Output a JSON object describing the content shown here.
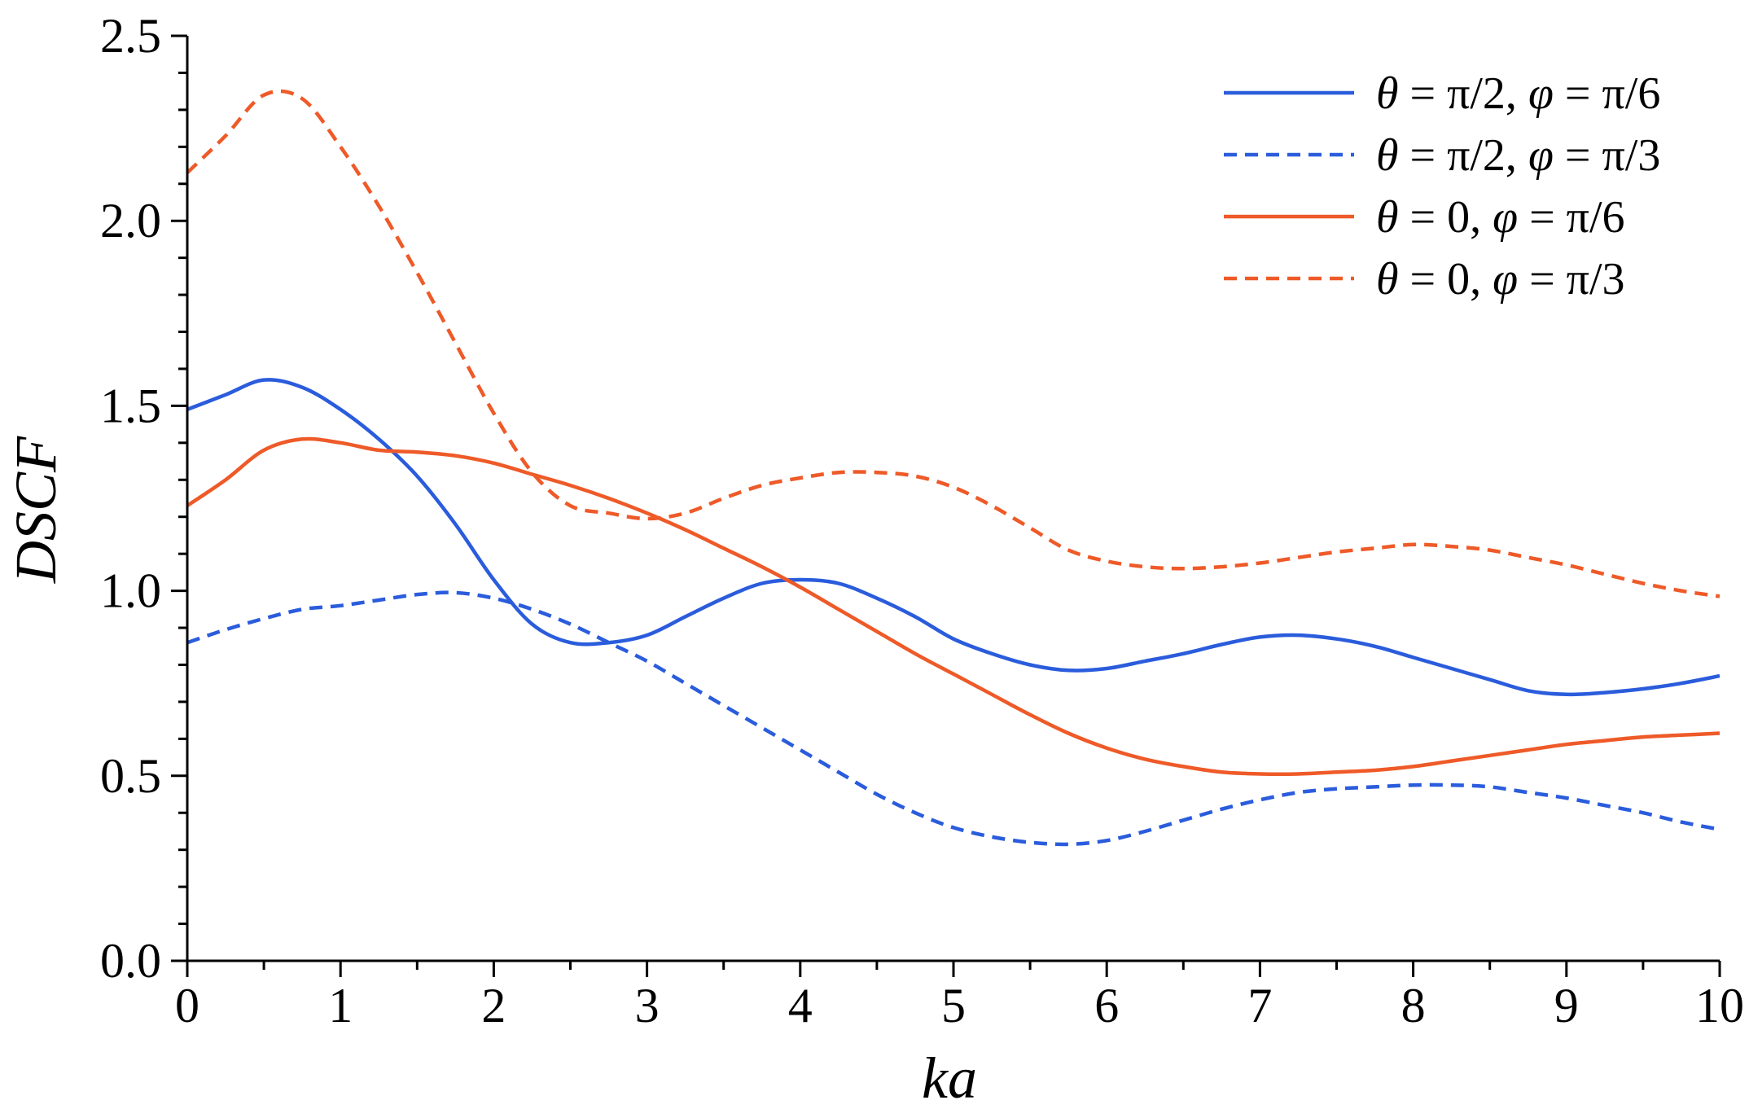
{
  "chart_data": {
    "type": "line",
    "xlabel": "ka",
    "ylabel": "DSCF",
    "xlim": [
      0,
      10
    ],
    "ylim": [
      0,
      2.5
    ],
    "x_ticks": [
      "0",
      "1",
      "2",
      "3",
      "4",
      "5",
      "6",
      "7",
      "8",
      "9",
      "10"
    ],
    "y_ticks": [
      "0.0",
      "0.5",
      "1.0",
      "1.5",
      "2.0",
      "2.5"
    ],
    "grid": false,
    "legend_position": "top-right",
    "series": [
      {
        "name": "θ = π/2, φ = π/6",
        "legend": {
          "a": "θ",
          "b": " = π/2, ",
          "c": "φ",
          "d": " = π/6"
        },
        "color": "#2A5CDC",
        "dash": "solid",
        "x": [
          0,
          0.25,
          0.5,
          0.75,
          1.0,
          1.25,
          1.5,
          1.75,
          2.0,
          2.25,
          2.5,
          2.75,
          3.0,
          3.25,
          3.5,
          3.75,
          4.0,
          4.25,
          4.5,
          4.75,
          5.0,
          5.25,
          5.5,
          5.75,
          6.0,
          6.25,
          6.5,
          6.75,
          7.0,
          7.25,
          7.5,
          7.75,
          8.0,
          8.25,
          8.5,
          8.75,
          9.0,
          9.25,
          9.5,
          9.75,
          10.0
        ],
        "y": [
          1.49,
          1.53,
          1.57,
          1.55,
          1.49,
          1.41,
          1.31,
          1.18,
          1.03,
          0.91,
          0.86,
          0.86,
          0.88,
          0.93,
          0.98,
          1.02,
          1.03,
          1.02,
          0.98,
          0.93,
          0.87,
          0.83,
          0.8,
          0.785,
          0.79,
          0.81,
          0.83,
          0.855,
          0.875,
          0.88,
          0.87,
          0.85,
          0.82,
          0.79,
          0.76,
          0.73,
          0.72,
          0.725,
          0.735,
          0.75,
          0.77
        ]
      },
      {
        "name": "θ = π/2, φ = π/3",
        "legend": {
          "a": "θ",
          "b": " = π/2, ",
          "c": "φ",
          "d": " = π/3"
        },
        "color": "#2A5CDC",
        "dash": "dashed",
        "x": [
          0,
          0.25,
          0.5,
          0.75,
          1.0,
          1.25,
          1.5,
          1.75,
          2.0,
          2.25,
          2.5,
          2.75,
          3.0,
          3.25,
          3.5,
          3.75,
          4.0,
          4.25,
          4.5,
          4.75,
          5.0,
          5.25,
          5.5,
          5.75,
          6.0,
          6.25,
          6.5,
          6.75,
          7.0,
          7.25,
          7.5,
          7.75,
          8.0,
          8.25,
          8.5,
          8.75,
          9.0,
          9.25,
          9.5,
          9.75,
          10.0
        ],
        "y": [
          0.86,
          0.895,
          0.925,
          0.95,
          0.96,
          0.975,
          0.99,
          0.995,
          0.98,
          0.95,
          0.91,
          0.86,
          0.81,
          0.75,
          0.69,
          0.63,
          0.57,
          0.51,
          0.45,
          0.4,
          0.36,
          0.335,
          0.32,
          0.315,
          0.325,
          0.35,
          0.38,
          0.41,
          0.435,
          0.455,
          0.465,
          0.47,
          0.475,
          0.475,
          0.47,
          0.455,
          0.44,
          0.42,
          0.4,
          0.375,
          0.355
        ]
      },
      {
        "name": "θ = 0, φ = π/6",
        "legend": {
          "a": "θ",
          "b": " = 0, ",
          "c": "φ",
          "d": " = π/6"
        },
        "color": "#EE5A28",
        "dash": "solid",
        "x": [
          0,
          0.25,
          0.5,
          0.75,
          1.0,
          1.25,
          1.5,
          1.75,
          2.0,
          2.25,
          2.5,
          2.75,
          3.0,
          3.25,
          3.5,
          3.75,
          4.0,
          4.25,
          4.5,
          4.75,
          5.0,
          5.25,
          5.5,
          5.75,
          6.0,
          6.25,
          6.5,
          6.75,
          7.0,
          7.25,
          7.5,
          7.75,
          8.0,
          8.25,
          8.5,
          8.75,
          9.0,
          9.25,
          9.5,
          9.75,
          10.0
        ],
        "y": [
          1.23,
          1.3,
          1.38,
          1.41,
          1.4,
          1.38,
          1.375,
          1.365,
          1.345,
          1.315,
          1.285,
          1.25,
          1.21,
          1.165,
          1.115,
          1.065,
          1.01,
          0.95,
          0.89,
          0.83,
          0.775,
          0.72,
          0.665,
          0.615,
          0.575,
          0.545,
          0.525,
          0.51,
          0.505,
          0.505,
          0.51,
          0.515,
          0.525,
          0.54,
          0.555,
          0.57,
          0.585,
          0.595,
          0.605,
          0.61,
          0.615
        ]
      },
      {
        "name": "θ = 0, φ = π/3",
        "legend": {
          "a": "θ",
          "b": " = 0, ",
          "c": "φ",
          "d": " = π/3"
        },
        "color": "#EE5A28",
        "dash": "dashed",
        "x": [
          0,
          0.25,
          0.5,
          0.75,
          1.0,
          1.25,
          1.5,
          1.75,
          2.0,
          2.25,
          2.5,
          2.75,
          3.0,
          3.25,
          3.5,
          3.75,
          4.0,
          4.25,
          4.5,
          4.75,
          5.0,
          5.25,
          5.5,
          5.75,
          6.0,
          6.25,
          6.5,
          6.75,
          7.0,
          7.25,
          7.5,
          7.75,
          8.0,
          8.25,
          8.5,
          8.75,
          9.0,
          9.25,
          9.5,
          9.75,
          10.0
        ],
        "y": [
          2.13,
          2.23,
          2.34,
          2.33,
          2.2,
          2.04,
          1.86,
          1.67,
          1.48,
          1.32,
          1.23,
          1.21,
          1.195,
          1.21,
          1.25,
          1.285,
          1.305,
          1.32,
          1.32,
          1.31,
          1.28,
          1.23,
          1.17,
          1.11,
          1.08,
          1.065,
          1.06,
          1.065,
          1.075,
          1.09,
          1.105,
          1.115,
          1.125,
          1.12,
          1.11,
          1.09,
          1.07,
          1.045,
          1.02,
          1.0,
          0.985
        ]
      }
    ]
  }
}
